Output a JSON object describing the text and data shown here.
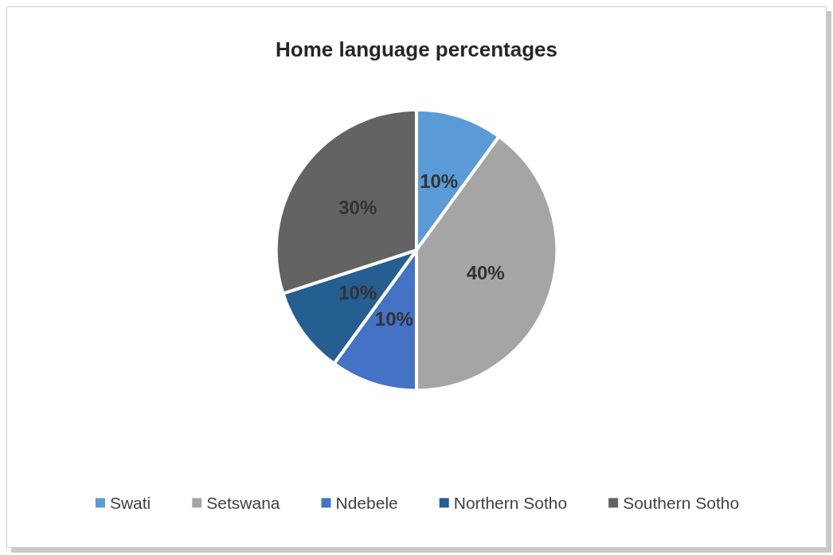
{
  "chart_data": {
    "type": "pie",
    "title": "Home language percentages",
    "categories": [
      "Swati",
      "Setswana",
      "Ndebele",
      "Northern Sotho",
      "Southern Sotho"
    ],
    "values": [
      10,
      40,
      10,
      10,
      30
    ],
    "value_labels": [
      "10%",
      "40%",
      "10%",
      "10%",
      "30%"
    ],
    "colors": [
      "#5b9bd5",
      "#a5a5a5",
      "#4472c4",
      "#255e91",
      "#636363"
    ],
    "legend": "bottom"
  }
}
